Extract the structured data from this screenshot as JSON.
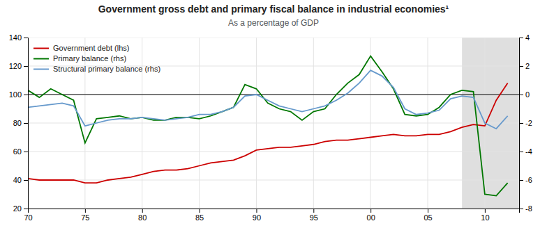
{
  "chart_data": {
    "type": "line",
    "title": "Government gross debt and primary fiscal balance in industrial economies¹",
    "subtitle": "As a percentage of GDP",
    "x": [
      70,
      71,
      72,
      73,
      74,
      75,
      76,
      77,
      78,
      79,
      80,
      81,
      82,
      83,
      84,
      85,
      86,
      87,
      88,
      89,
      90,
      91,
      92,
      93,
      94,
      95,
      96,
      97,
      98,
      99,
      100,
      101,
      102,
      103,
      104,
      105,
      106,
      107,
      108,
      109,
      110,
      111,
      112
    ],
    "series": [
      {
        "name": "Government debt (lhs)",
        "color": "#cc0000",
        "values": [
          41,
          40,
          40,
          40,
          40,
          38,
          38,
          40,
          41,
          42,
          44,
          46,
          47,
          47,
          48,
          50,
          52,
          53,
          54,
          57,
          61,
          62,
          63,
          63,
          64,
          65,
          67,
          68,
          68,
          69,
          70,
          71,
          72,
          71,
          71,
          72,
          72,
          74,
          77,
          79,
          78,
          96,
          108
        ]
      },
      {
        "name": "Primary balance (rhs)",
        "color": "#007700",
        "axis": "y2",
        "values": [
          0.3,
          -0.2,
          0.4,
          0,
          -0.4,
          -3.4,
          -1.7,
          -1.6,
          -1.5,
          -1.7,
          -1.6,
          -1.8,
          -1.8,
          -1.6,
          -1.6,
          -1.7,
          -1.5,
          -1.2,
          -0.9,
          0.7,
          0.4,
          -0.6,
          -1,
          -1.2,
          -1.8,
          -1.2,
          -1,
          0,
          0.8,
          1.4,
          2.7,
          1.6,
          0.4,
          -1.4,
          -1.5,
          -1.4,
          -0.9,
          0,
          0.3,
          0.2,
          -7,
          -7.1,
          -6.2
        ]
      },
      {
        "name": "Structural primary balance (rhs)",
        "color": "#6699cc",
        "axis": "y2",
        "values": [
          -0.9,
          -0.8,
          -0.7,
          -0.6,
          -0.8,
          -2.2,
          -2,
          -1.8,
          -1.7,
          -1.7,
          -1.6,
          -1.7,
          -1.8,
          -1.7,
          -1.6,
          -1.4,
          -1.4,
          -1.2,
          -0.9,
          -0.1,
          0,
          -0.4,
          -0.8,
          -1,
          -1.2,
          -1,
          -0.8,
          -0.4,
          0.1,
          0.8,
          1.7,
          1.3,
          0.5,
          -1,
          -1.4,
          -1.3,
          -1.1,
          -0.3,
          -0.1,
          -0.2,
          -2,
          -2.4,
          -1.5
        ]
      }
    ],
    "xlim": [
      70,
      113
    ],
    "xticks": [
      70,
      75,
      80,
      85,
      90,
      95,
      {
        "value": 100,
        "label": "00"
      },
      {
        "value": 105,
        "label": "05"
      },
      {
        "value": 110,
        "label": "10"
      }
    ],
    "ylim": [
      20,
      140
    ],
    "yticks": [
      20,
      40,
      60,
      80,
      100,
      120,
      140
    ],
    "y2lim": [
      -8,
      4
    ],
    "y2ticks": [
      -8,
      -6,
      -4,
      -2,
      0,
      2,
      4
    ],
    "shade": {
      "x": [
        108,
        113
      ],
      "color": "#b8b8b8"
    },
    "reference_line": {
      "axis": "y2",
      "value": 0,
      "color": "#000000"
    },
    "grid": true,
    "legend": "upper left"
  }
}
